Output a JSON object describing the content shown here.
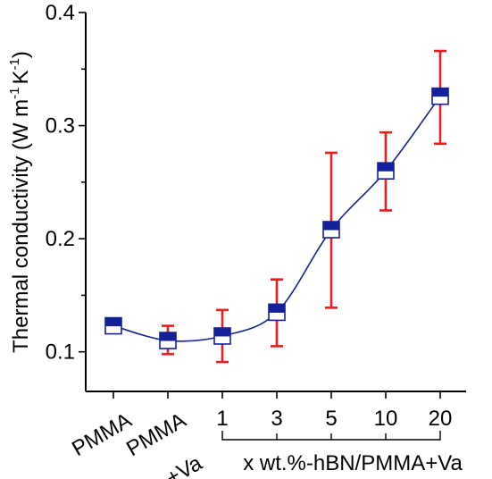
{
  "chart_data": {
    "type": "scatter",
    "ylabel": {
      "main": "Thermal conductivity (W m",
      "exp1": "-1",
      "mid": "K",
      "exp2": "-1",
      "end": ")"
    },
    "ylim": [
      0.065,
      0.4
    ],
    "yticks": [
      {
        "value": 0.1,
        "label": "0.1"
      },
      {
        "value": 0.2,
        "label": "0.2"
      },
      {
        "value": 0.3,
        "label": "0.3"
      },
      {
        "value": 0.4,
        "label": "0.4"
      }
    ],
    "categories": [
      "PMMA",
      "PMMA +Va",
      "1",
      "3",
      "5",
      "10",
      "20"
    ],
    "category_labels": [
      {
        "lines": [
          "PMMA"
        ],
        "rotated": true
      },
      {
        "lines": [
          "PMMA",
          "+Va"
        ],
        "rotated": true
      },
      {
        "lines": [
          "1"
        ],
        "rotated": false
      },
      {
        "lines": [
          "3"
        ],
        "rotated": false
      },
      {
        "lines": [
          "5"
        ],
        "rotated": false
      },
      {
        "lines": [
          "10"
        ],
        "rotated": false
      },
      {
        "lines": [
          "20"
        ],
        "rotated": false
      }
    ],
    "group_label": "x wt.%-hBN/PMMA+Va",
    "series": [
      {
        "values": [
          0.123,
          0.11,
          0.114,
          0.135,
          0.208,
          0.26,
          0.326
        ],
        "err_low": [
          0.117,
          0.098,
          0.091,
          0.105,
          0.139,
          0.225,
          0.284
        ],
        "err_high": [
          0.128,
          0.123,
          0.137,
          0.164,
          0.276,
          0.294,
          0.366
        ],
        "marker_color": "#13209a",
        "error_color": "#e5201e",
        "line_color": "#13209a"
      }
    ],
    "grid": false
  }
}
